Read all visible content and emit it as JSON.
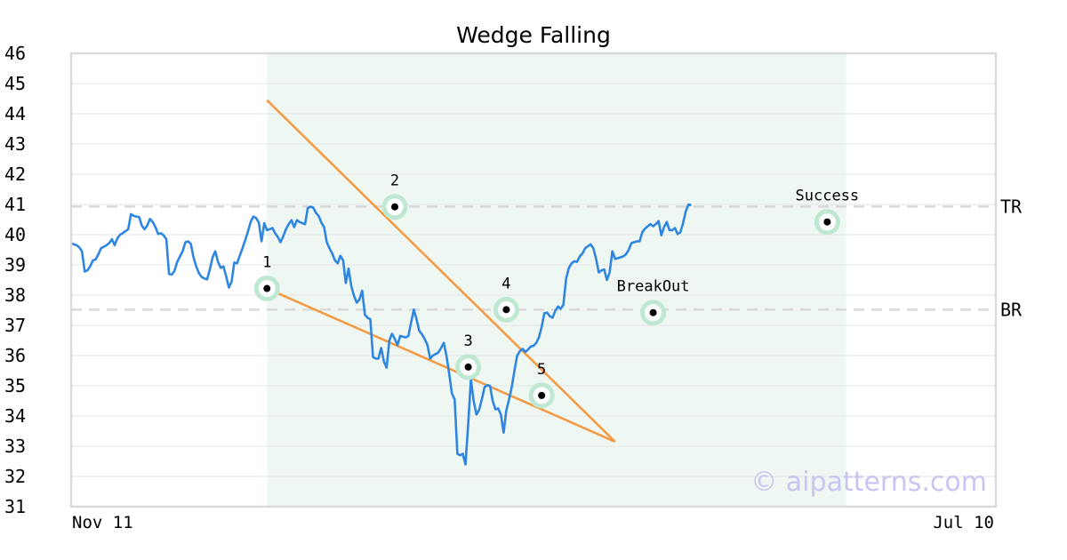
{
  "chart_data": {
    "type": "line",
    "title": "Wedge Falling",
    "xlabel": "",
    "ylabel": "",
    "ylim": [
      31,
      46
    ],
    "yticks": [
      31,
      32,
      33,
      34,
      35,
      36,
      37,
      38,
      39,
      40,
      41,
      42,
      43,
      44,
      45,
      46
    ],
    "x_start_label": "Nov 11",
    "x_end_label": "Jul 10",
    "grid": "horizontal",
    "pattern_region": {
      "start_index": 72,
      "end_index": 285
    },
    "reference_lines": [
      {
        "label": "TR",
        "value": 40.93
      },
      {
        "label": "BR",
        "value": 37.52
      }
    ],
    "price_series": [
      39.72,
      39.68,
      39.65,
      39.58,
      39.45,
      38.78,
      38.82,
      38.95,
      39.15,
      39.18,
      39.35,
      39.55,
      39.6,
      39.65,
      39.72,
      39.85,
      39.65,
      39.88,
      40.0,
      40.05,
      40.12,
      40.18,
      40.68,
      40.62,
      40.6,
      40.58,
      40.3,
      40.18,
      40.3,
      40.52,
      40.42,
      40.25,
      40.02,
      40.05,
      39.98,
      39.85,
      38.7,
      38.68,
      38.8,
      39.1,
      39.28,
      39.45,
      39.75,
      39.78,
      39.7,
      39.25,
      38.95,
      38.72,
      38.6,
      38.55,
      38.52,
      38.85,
      39.25,
      39.45,
      39.1,
      38.9,
      38.95,
      38.62,
      38.25,
      38.45,
      39.08,
      39.05,
      39.3,
      39.55,
      39.82,
      40.1,
      40.42,
      40.6,
      40.55,
      40.4,
      39.78,
      40.38,
      40.15,
      40.18,
      40.22,
      40.05,
      39.92,
      39.75,
      39.95,
      40.18,
      40.35,
      40.48,
      40.25,
      40.48,
      40.42,
      40.38,
      40.35,
      40.88,
      40.92,
      40.9,
      40.72,
      40.62,
      40.4,
      40.25,
      39.75,
      39.55,
      39.38,
      39.15,
      39.05,
      39.3,
      39.15,
      38.4,
      38.88,
      38.3,
      37.98,
      37.75,
      37.85,
      38.15,
      37.35,
      37.25,
      37.2,
      35.95,
      35.9,
      35.9,
      36.25,
      35.8,
      35.6,
      36.5,
      36.72,
      36.55,
      36.35,
      36.65,
      36.62,
      36.6,
      36.65,
      37.1,
      37.52,
      37.2,
      36.82,
      36.7,
      36.55,
      36.35,
      35.9,
      36.0,
      36.05,
      36.1,
      36.25,
      36.42,
      36.0,
      35.4,
      34.75,
      34.55,
      32.75,
      32.7,
      32.75,
      32.4,
      33.75,
      35.22,
      34.5,
      34.05,
      34.2,
      34.55,
      34.95,
      35.02,
      35.0,
      34.5,
      34.22,
      34.25,
      34.05,
      33.45,
      34.18,
      34.55,
      34.95,
      35.5,
      36.0,
      36.15,
      36.22,
      36.12,
      36.2,
      36.3,
      36.32,
      36.42,
      36.6,
      36.95,
      37.4,
      37.42,
      37.3,
      37.25,
      37.48,
      37.62,
      37.55,
      37.68,
      38.55,
      38.9,
      39.05,
      39.12,
      39.1,
      39.28,
      39.38,
      39.55,
      39.62,
      39.68,
      39.55,
      39.2,
      38.75,
      38.82,
      38.85,
      38.5,
      38.75,
      39.45,
      39.2,
      39.22,
      39.25,
      39.28,
      39.35,
      39.5,
      39.72,
      39.75,
      39.78,
      39.78,
      40.08,
      40.2,
      40.28,
      40.35,
      40.28,
      40.35,
      40.45,
      39.98,
      40.25,
      40.42,
      40.15,
      40.15,
      40.22,
      40.02,
      40.08,
      40.38,
      40.78,
      41.0,
      40.98
    ],
    "wedge_lines": [
      {
        "name": "upper",
        "from": [
          72,
          44.45
        ],
        "to": [
          200,
          33.15
        ]
      },
      {
        "name": "lower",
        "from": [
          72,
          38.22
        ],
        "to": [
          200,
          33.15
        ]
      }
    ],
    "points": [
      {
        "label": "1",
        "x": 72,
        "y": 38.22
      },
      {
        "label": "2",
        "x": 119,
        "y": 40.92
      },
      {
        "label": "3",
        "x": 146,
        "y": 35.62
      },
      {
        "label": "4",
        "x": 160,
        "y": 37.52
      },
      {
        "label": "5",
        "x": 173,
        "y": 34.68
      },
      {
        "label": "BreakOut",
        "x": 214,
        "y": 37.42
      },
      {
        "label": "Success",
        "x": 278,
        "y": 40.42
      }
    ],
    "watermark": "© aipatterns.com"
  }
}
